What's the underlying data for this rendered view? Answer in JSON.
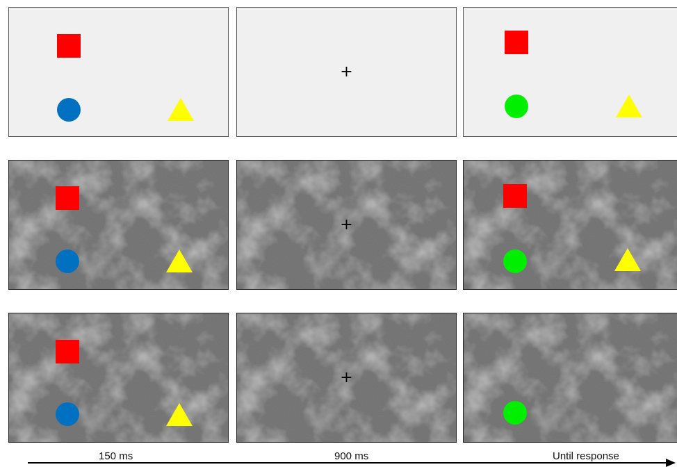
{
  "colors": {
    "square": "#ff0000",
    "circle_blue": "#0070c0",
    "circle_green": "#00ee00",
    "triangle": "#ffff00",
    "plain_background": "#f0f0f0",
    "noise_background": "#6f6f6f"
  },
  "rows": [
    {
      "background": "plain",
      "frames": [
        {
          "kind": "array",
          "square": true,
          "circle": "blue",
          "triangle": true
        },
        {
          "kind": "fixation",
          "mark": "+"
        },
        {
          "kind": "array",
          "square": true,
          "circle": "green",
          "triangle": true
        }
      ]
    },
    {
      "background": "noise",
      "frames": [
        {
          "kind": "array",
          "square": true,
          "circle": "blue",
          "triangle": true
        },
        {
          "kind": "fixation",
          "mark": "+"
        },
        {
          "kind": "array",
          "square": true,
          "circle": "green",
          "triangle": true
        }
      ]
    },
    {
      "background": "noise",
      "frames": [
        {
          "kind": "array",
          "square": true,
          "circle": "blue",
          "triangle": true
        },
        {
          "kind": "fixation",
          "mark": "+"
        },
        {
          "kind": "array",
          "square": false,
          "circle": "green",
          "triangle": false
        }
      ]
    }
  ],
  "timeline": {
    "labels": [
      "150 ms",
      "900 ms",
      "Until response"
    ]
  }
}
